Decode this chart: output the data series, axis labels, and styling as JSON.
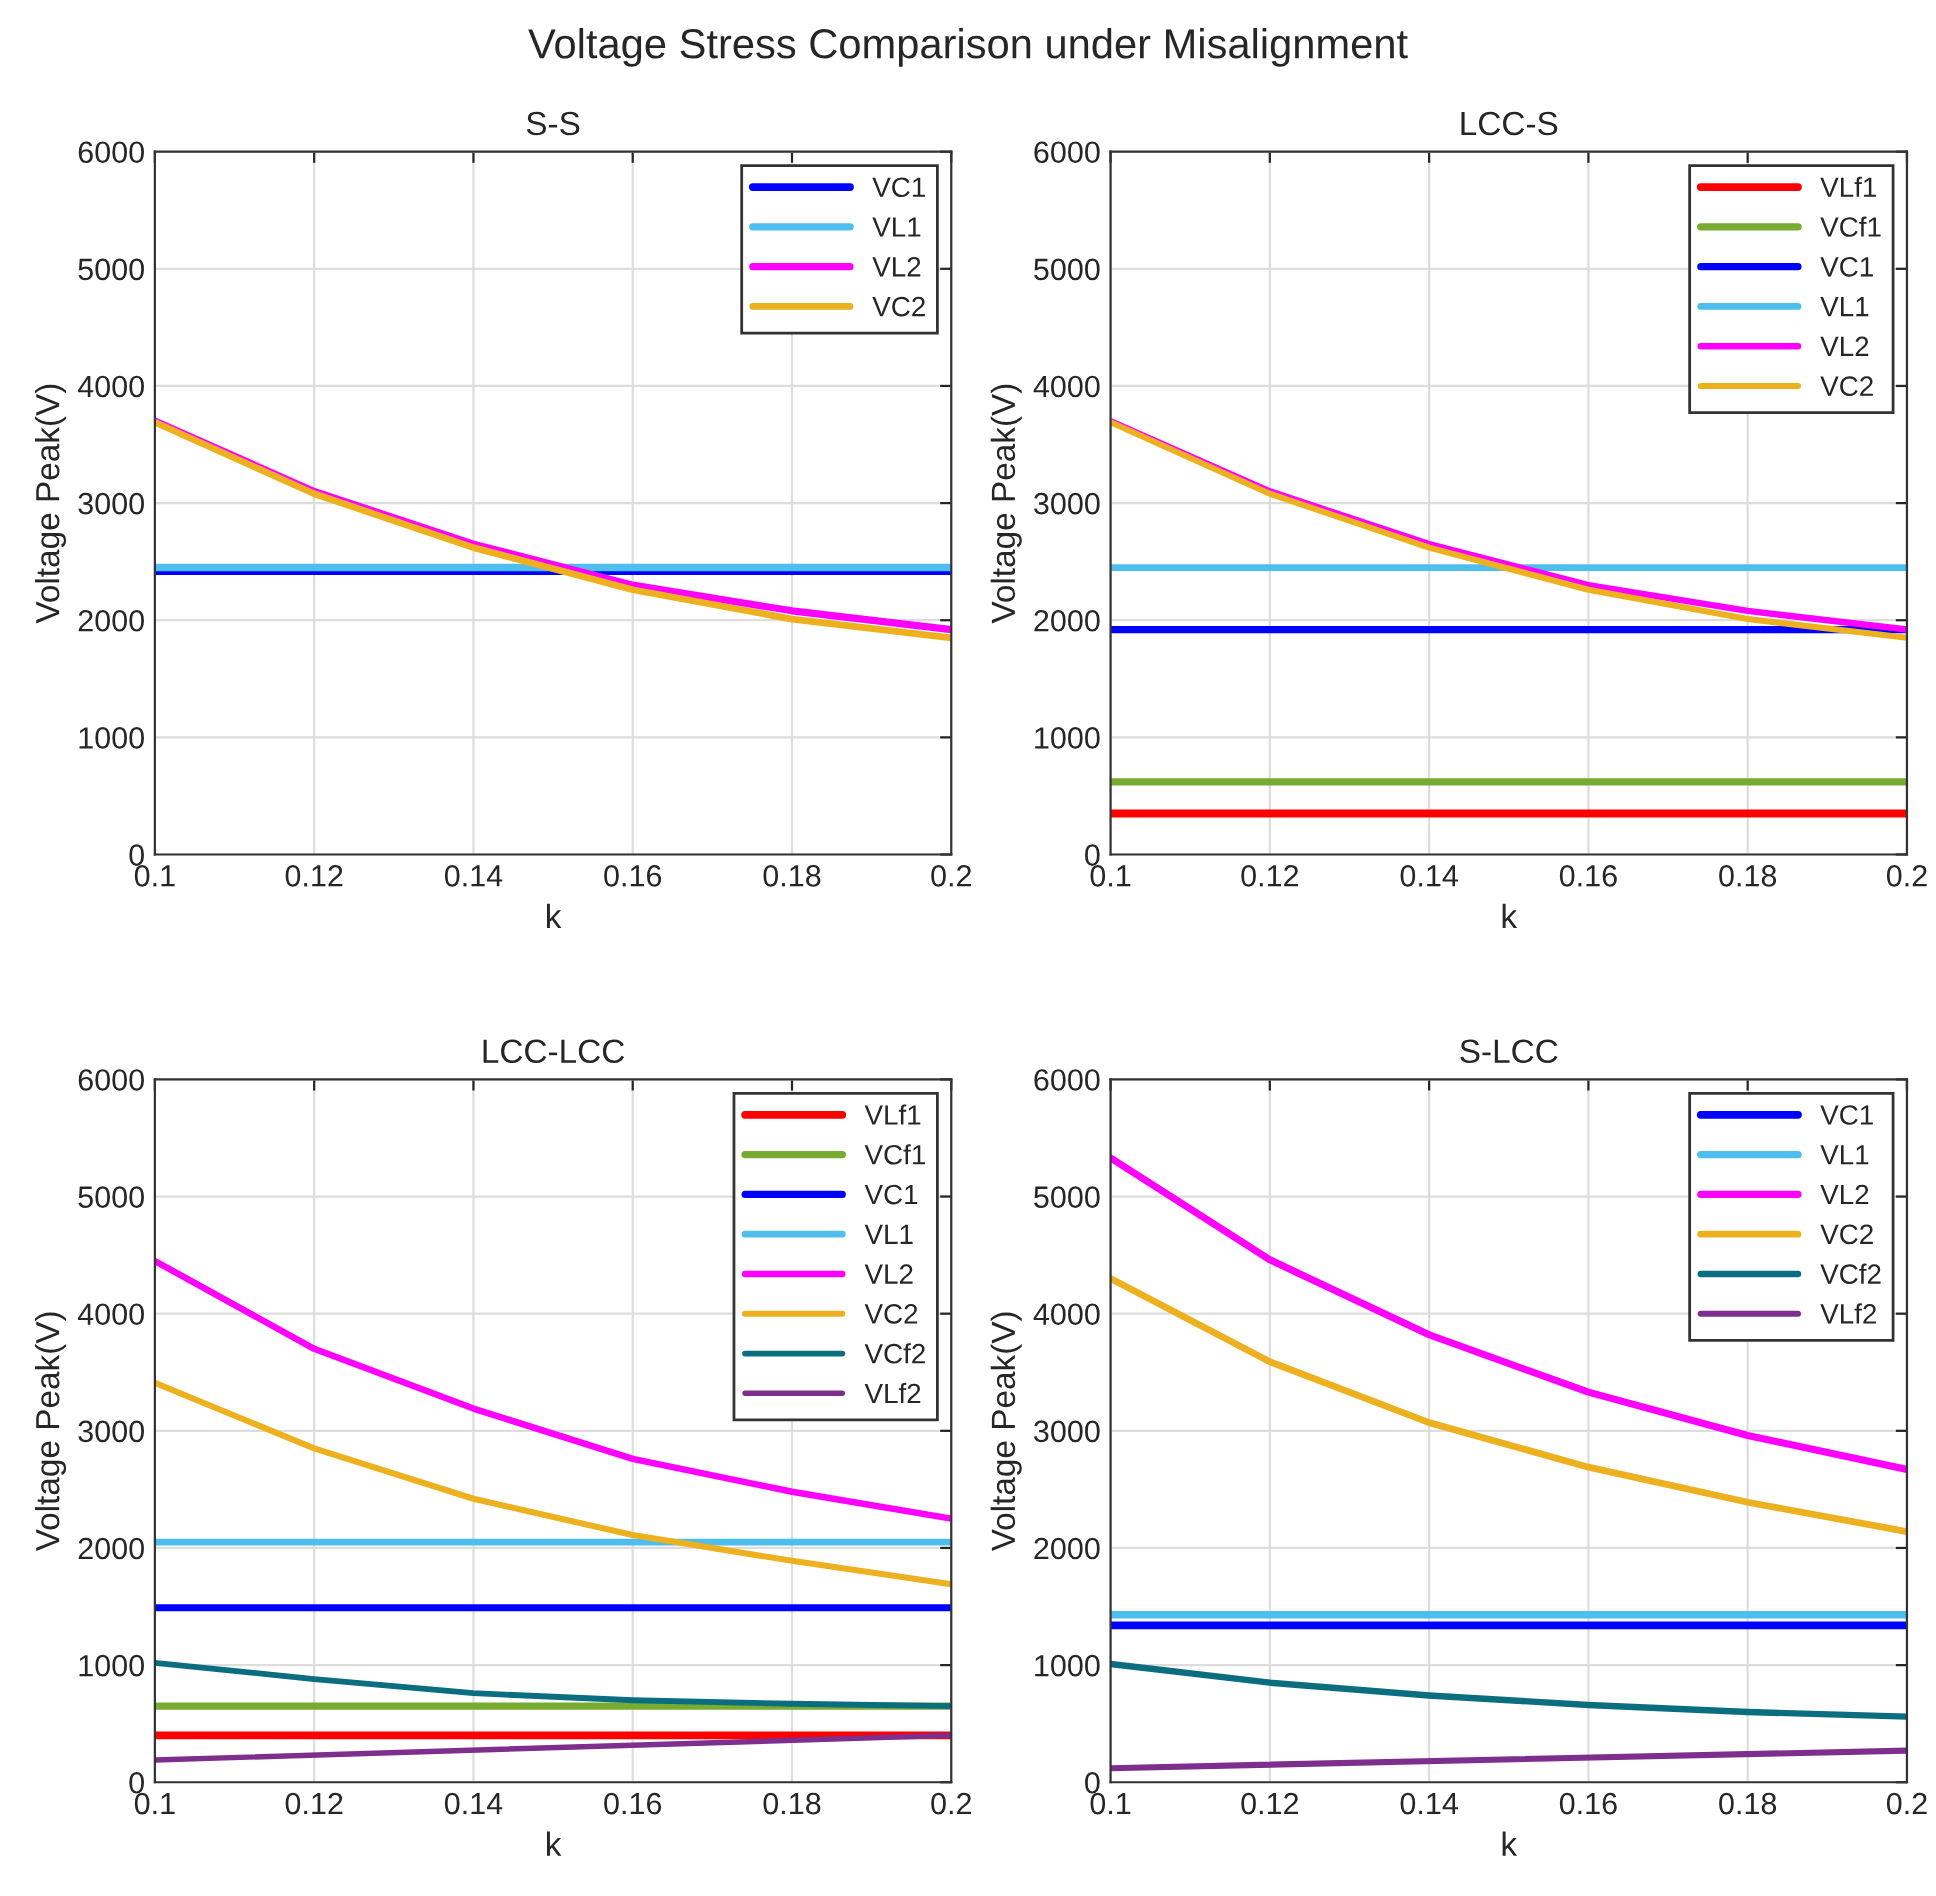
{
  "chart_data": [
    {
      "type": "line",
      "title": "S-S",
      "xlabel": "k",
      "ylabel": "Voltage Peak(V)",
      "annotations": [
        "Voltage Stress Comparison under Misalignment"
      ],
      "xlim": [
        0.1,
        0.2
      ],
      "xticks": [
        0.1,
        0.12,
        0.14,
        0.16,
        0.18,
        0.2
      ],
      "ylim": [
        0,
        6000
      ],
      "yticks": [
        0,
        1000,
        2000,
        3000,
        4000,
        5000,
        6000
      ],
      "grid": true,
      "legend": "top right",
      "line_style": "solid",
      "series": [
        {
          "name": "VC1",
          "color": "#0000ff",
          "x": [
            0.1,
            0.2
          ],
          "values": [
            2420,
            2420
          ]
        },
        {
          "name": "VL1",
          "color": "#4dbeee",
          "x": [
            0.1,
            0.2
          ],
          "values": [
            2450,
            2450
          ]
        },
        {
          "name": "VL2",
          "color": "#ff00ff",
          "x": [
            0.1,
            0.12,
            0.14,
            0.16,
            0.18,
            0.2
          ],
          "values": [
            3700,
            3100,
            2650,
            2300,
            2080,
            1920
          ]
        },
        {
          "name": "VC2",
          "color": "#edb120",
          "x": [
            0.1,
            0.12,
            0.14,
            0.16,
            0.18,
            0.2
          ],
          "values": [
            3690,
            3080,
            2620,
            2260,
            2010,
            1850
          ]
        }
      ]
    },
    {
      "type": "line",
      "title": "LCC-S",
      "xlabel": "k",
      "ylabel": "Voltage Peak(V)",
      "xlim": [
        0.1,
        0.2
      ],
      "xticks": [
        0.1,
        0.12,
        0.14,
        0.16,
        0.18,
        0.2
      ],
      "ylim": [
        0,
        6000
      ],
      "yticks": [
        0,
        1000,
        2000,
        3000,
        4000,
        5000,
        6000
      ],
      "grid": true,
      "legend": "top right",
      "line_style": "solid",
      "series": [
        {
          "name": "VLf1",
          "color": "#ff0000",
          "x": [
            0.1,
            0.2
          ],
          "values": [
            350,
            350
          ]
        },
        {
          "name": "VCf1",
          "color": "#77ac30",
          "x": [
            0.1,
            0.2
          ],
          "values": [
            620,
            620
          ]
        },
        {
          "name": "VC1",
          "color": "#0000ff",
          "x": [
            0.1,
            0.2
          ],
          "values": [
            1920,
            1920
          ]
        },
        {
          "name": "VL1",
          "color": "#4dbeee",
          "x": [
            0.1,
            0.2
          ],
          "values": [
            2450,
            2450
          ]
        },
        {
          "name": "VL2",
          "color": "#ff00ff",
          "x": [
            0.1,
            0.12,
            0.14,
            0.16,
            0.18,
            0.2
          ],
          "values": [
            3700,
            3100,
            2650,
            2300,
            2080,
            1920
          ]
        },
        {
          "name": "VC2",
          "color": "#edb120",
          "x": [
            0.1,
            0.12,
            0.14,
            0.16,
            0.18,
            0.2
          ],
          "values": [
            3690,
            3080,
            2620,
            2260,
            2010,
            1850
          ]
        }
      ]
    },
    {
      "type": "line",
      "title": "LCC-LCC",
      "xlabel": "k",
      "ylabel": "Voltage Peak(V)",
      "xlim": [
        0.1,
        0.2
      ],
      "xticks": [
        0.1,
        0.12,
        0.14,
        0.16,
        0.18,
        0.2
      ],
      "ylim": [
        0,
        6000
      ],
      "yticks": [
        0,
        1000,
        2000,
        3000,
        4000,
        5000,
        6000
      ],
      "grid": true,
      "legend": "top right",
      "line_style": "solid",
      "series": [
        {
          "name": "VLf1",
          "color": "#ff0000",
          "x": [
            0.1,
            0.2
          ],
          "values": [
            400,
            400
          ]
        },
        {
          "name": "VCf1",
          "color": "#77ac30",
          "x": [
            0.1,
            0.2
          ],
          "values": [
            650,
            650
          ]
        },
        {
          "name": "VC1",
          "color": "#0000ff",
          "x": [
            0.1,
            0.2
          ],
          "values": [
            1490,
            1490
          ]
        },
        {
          "name": "VL1",
          "color": "#4dbeee",
          "x": [
            0.1,
            0.2
          ],
          "values": [
            2050,
            2050
          ]
        },
        {
          "name": "VL2",
          "color": "#ff00ff",
          "x": [
            0.1,
            0.12,
            0.14,
            0.16,
            0.18,
            0.2
          ],
          "values": [
            4450,
            3700,
            3190,
            2760,
            2480,
            2250
          ]
        },
        {
          "name": "VC2",
          "color": "#edb120",
          "x": [
            0.1,
            0.12,
            0.14,
            0.16,
            0.18,
            0.2
          ],
          "values": [
            3410,
            2850,
            2420,
            2110,
            1890,
            1690
          ]
        },
        {
          "name": "VCf2",
          "color": "#0b6e80",
          "x": [
            0.1,
            0.12,
            0.14,
            0.16,
            0.18,
            0.2
          ],
          "values": [
            1020,
            880,
            760,
            700,
            670,
            650
          ]
        },
        {
          "name": "VLf2",
          "color": "#7e2f8e",
          "x": [
            0.1,
            0.2
          ],
          "values": [
            190,
            400
          ]
        }
      ]
    },
    {
      "type": "line",
      "title": "S-LCC",
      "xlabel": "k",
      "ylabel": "Voltage Peak(V)",
      "xlim": [
        0.1,
        0.2
      ],
      "xticks": [
        0.1,
        0.12,
        0.14,
        0.16,
        0.18,
        0.2
      ],
      "ylim": [
        0,
        6000
      ],
      "yticks": [
        0,
        1000,
        2000,
        3000,
        4000,
        5000,
        6000
      ],
      "grid": true,
      "legend": "top right",
      "line_style": "solid",
      "series": [
        {
          "name": "VC1",
          "color": "#0000ff",
          "x": [
            0.1,
            0.2
          ],
          "values": [
            1340,
            1340
          ]
        },
        {
          "name": "VL1",
          "color": "#4dbeee",
          "x": [
            0.1,
            0.2
          ],
          "values": [
            1430,
            1430
          ]
        },
        {
          "name": "VL2",
          "color": "#ff00ff",
          "x": [
            0.1,
            0.12,
            0.14,
            0.16,
            0.18,
            0.2
          ],
          "values": [
            5330,
            4460,
            3820,
            3330,
            2960,
            2670
          ]
        },
        {
          "name": "VC2",
          "color": "#edb120",
          "x": [
            0.1,
            0.12,
            0.14,
            0.16,
            0.18,
            0.2
          ],
          "values": [
            4300,
            3590,
            3070,
            2690,
            2390,
            2140
          ]
        },
        {
          "name": "VCf2",
          "color": "#0b6e80",
          "x": [
            0.1,
            0.12,
            0.14,
            0.16,
            0.18,
            0.2
          ],
          "values": [
            1010,
            850,
            740,
            660,
            600,
            560
          ]
        },
        {
          "name": "VLf2",
          "color": "#7e2f8e",
          "x": [
            0.1,
            0.2
          ],
          "values": [
            120,
            270
          ]
        }
      ]
    }
  ]
}
